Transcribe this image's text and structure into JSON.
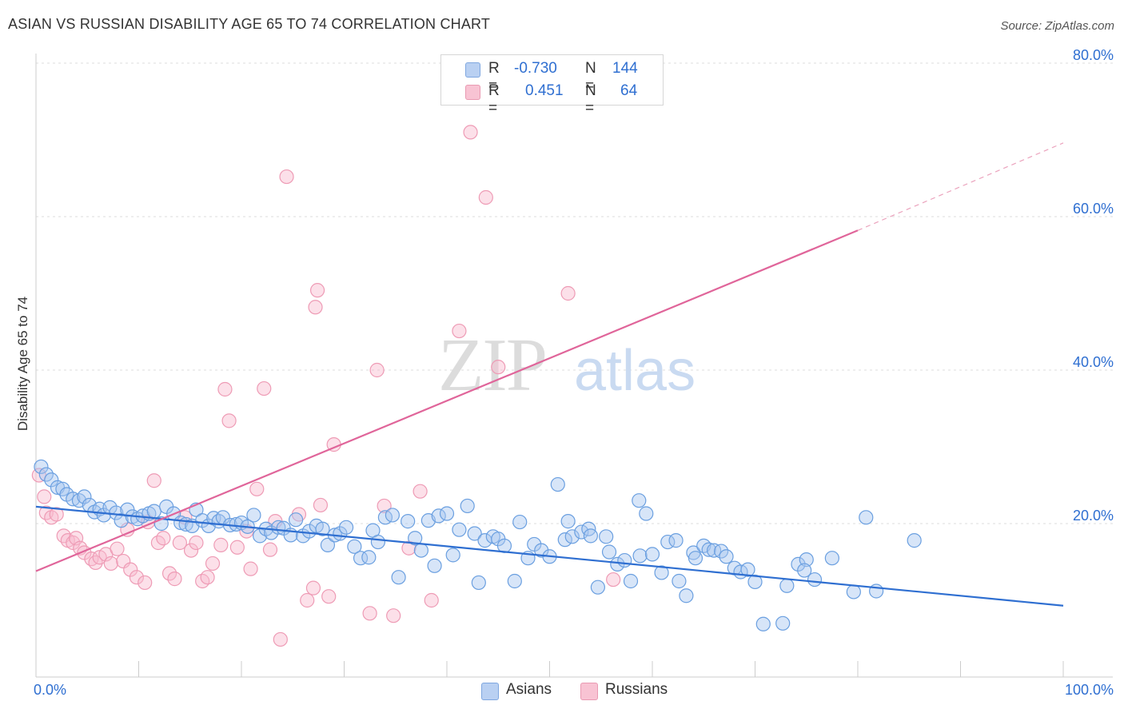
{
  "title": "ASIAN VS RUSSIAN DISABILITY AGE 65 TO 74 CORRELATION CHART",
  "source": "Source: ZipAtlas.com",
  "watermark": {
    "zip": "ZIP",
    "atlas": "atlas"
  },
  "legend": {
    "rows": [
      {
        "r_label": "R =",
        "r_value": "-0.730",
        "n_label": "N =",
        "n_value": "144",
        "color": "#7fa7e0"
      },
      {
        "r_label": "R =",
        "r_value": "0.451",
        "n_label": "N =",
        "n_value": "64",
        "color": "#e99ab2"
      }
    ]
  },
  "chart_data": {
    "type": "scatter",
    "title": "ASIAN VS RUSSIAN DISABILITY AGE 65 TO 74 CORRELATION CHART",
    "xlabel": "",
    "ylabel": "Disability Age 65 to 74",
    "xlim": [
      0,
      100
    ],
    "ylim": [
      0,
      80
    ],
    "x_tick_labels": [
      "0.0%",
      "100.0%"
    ],
    "y_ticks": [
      20,
      40,
      60,
      80
    ],
    "y_tick_labels": [
      "20.0%",
      "40.0%",
      "60.0%",
      "80.0%"
    ],
    "grid": "horizontal dashed",
    "legend_position": "top-center",
    "series": [
      {
        "name": "Asians",
        "color": "#6a9fe0",
        "trend": {
          "x": [
            0,
            100
          ],
          "y": [
            22.2,
            9.3
          ],
          "style": "solid"
        },
        "points": [
          [
            0.5,
            27.4
          ],
          [
            1.0,
            26.4
          ],
          [
            1.5,
            25.7
          ],
          [
            2.1,
            24.7
          ],
          [
            2.6,
            24.5
          ],
          [
            3.0,
            23.8
          ],
          [
            3.6,
            23.2
          ],
          [
            4.2,
            23.0
          ],
          [
            4.7,
            23.5
          ],
          [
            5.2,
            22.4
          ],
          [
            5.7,
            21.5
          ],
          [
            6.2,
            21.9
          ],
          [
            6.6,
            21.1
          ],
          [
            7.2,
            22.1
          ],
          [
            7.8,
            21.4
          ],
          [
            8.3,
            20.4
          ],
          [
            8.9,
            21.8
          ],
          [
            9.4,
            20.9
          ],
          [
            9.9,
            20.6
          ],
          [
            10.4,
            21.0
          ],
          [
            11.0,
            21.3
          ],
          [
            11.5,
            21.6
          ],
          [
            12.2,
            20.0
          ],
          [
            12.7,
            22.2
          ],
          [
            13.4,
            21.3
          ],
          [
            14.1,
            20.1
          ],
          [
            14.6,
            19.9
          ],
          [
            15.2,
            19.7
          ],
          [
            15.6,
            21.8
          ],
          [
            16.2,
            20.4
          ],
          [
            16.8,
            19.7
          ],
          [
            17.3,
            20.7
          ],
          [
            17.8,
            20.3
          ],
          [
            18.2,
            20.8
          ],
          [
            18.9,
            19.8
          ],
          [
            19.5,
            19.9
          ],
          [
            20.0,
            20.1
          ],
          [
            20.6,
            19.6
          ],
          [
            21.2,
            21.1
          ],
          [
            21.8,
            18.4
          ],
          [
            22.4,
            19.3
          ],
          [
            22.9,
            18.8
          ],
          [
            23.6,
            19.5
          ],
          [
            24.1,
            19.4
          ],
          [
            24.8,
            18.5
          ],
          [
            25.3,
            20.5
          ],
          [
            26.0,
            18.4
          ],
          [
            26.6,
            19.0
          ],
          [
            27.3,
            19.7
          ],
          [
            27.9,
            19.3
          ],
          [
            28.4,
            17.2
          ],
          [
            29.1,
            18.5
          ],
          [
            29.6,
            18.7
          ],
          [
            30.2,
            19.5
          ],
          [
            31.0,
            17.0
          ],
          [
            31.6,
            15.5
          ],
          [
            32.4,
            15.6
          ],
          [
            32.8,
            19.1
          ],
          [
            33.3,
            17.6
          ],
          [
            34.0,
            20.8
          ],
          [
            34.7,
            21.1
          ],
          [
            35.3,
            13.0
          ],
          [
            36.2,
            20.3
          ],
          [
            36.9,
            18.1
          ],
          [
            37.5,
            16.5
          ],
          [
            38.2,
            20.4
          ],
          [
            38.8,
            14.5
          ],
          [
            39.2,
            21.0
          ],
          [
            40.0,
            21.3
          ],
          [
            40.6,
            15.9
          ],
          [
            41.2,
            19.2
          ],
          [
            42.0,
            22.3
          ],
          [
            42.7,
            18.7
          ],
          [
            43.1,
            12.3
          ],
          [
            43.7,
            17.8
          ],
          [
            44.5,
            18.3
          ],
          [
            45.0,
            18.0
          ],
          [
            45.6,
            17.1
          ],
          [
            46.6,
            12.5
          ],
          [
            47.1,
            20.2
          ],
          [
            47.9,
            15.5
          ],
          [
            48.5,
            17.3
          ],
          [
            49.2,
            16.5
          ],
          [
            50.0,
            15.7
          ],
          [
            50.8,
            25.1
          ],
          [
            51.5,
            17.9
          ],
          [
            51.8,
            20.3
          ],
          [
            52.2,
            18.3
          ],
          [
            53.1,
            18.9
          ],
          [
            53.8,
            19.3
          ],
          [
            54.0,
            18.4
          ],
          [
            54.7,
            11.7
          ],
          [
            55.5,
            18.3
          ],
          [
            55.8,
            16.3
          ],
          [
            56.6,
            14.7
          ],
          [
            57.3,
            15.2
          ],
          [
            57.9,
            12.5
          ],
          [
            58.7,
            23.0
          ],
          [
            58.8,
            15.8
          ],
          [
            59.4,
            21.3
          ],
          [
            60.0,
            16.0
          ],
          [
            60.9,
            13.6
          ],
          [
            61.5,
            17.6
          ],
          [
            62.3,
            17.8
          ],
          [
            62.6,
            12.5
          ],
          [
            63.3,
            10.6
          ],
          [
            64.0,
            16.2
          ],
          [
            64.2,
            15.5
          ],
          [
            65.0,
            17.1
          ],
          [
            65.5,
            16.6
          ],
          [
            66.0,
            16.5
          ],
          [
            66.7,
            16.4
          ],
          [
            67.2,
            15.7
          ],
          [
            68.0,
            14.2
          ],
          [
            68.6,
            13.7
          ],
          [
            69.3,
            14.0
          ],
          [
            70.0,
            12.4
          ],
          [
            70.8,
            6.9
          ],
          [
            72.7,
            7.0
          ],
          [
            73.1,
            11.9
          ],
          [
            74.2,
            14.7
          ],
          [
            75.0,
            15.3
          ],
          [
            74.8,
            13.9
          ],
          [
            75.8,
            12.7
          ],
          [
            77.5,
            15.5
          ],
          [
            79.6,
            11.1
          ],
          [
            80.8,
            20.8
          ],
          [
            81.8,
            11.2
          ],
          [
            85.5,
            17.8
          ]
        ]
      },
      {
        "name": "Russians",
        "color": "#ef9ab5",
        "trend": {
          "x": [
            0,
            80
          ],
          "y": [
            13.8,
            58.2
          ],
          "x_dashed": [
            80,
            100
          ],
          "y_dashed": [
            58.2,
            69.6
          ],
          "style": "solid+dashed"
        },
        "points": [
          [
            0.3,
            26.3
          ],
          [
            0.8,
            23.5
          ],
          [
            1.0,
            21.4
          ],
          [
            1.5,
            20.8
          ],
          [
            2.0,
            21.2
          ],
          [
            2.7,
            18.4
          ],
          [
            3.1,
            17.8
          ],
          [
            3.6,
            17.5
          ],
          [
            3.9,
            18.1
          ],
          [
            4.3,
            16.8
          ],
          [
            4.7,
            16.2
          ],
          [
            5.4,
            15.4
          ],
          [
            5.8,
            14.9
          ],
          [
            6.2,
            15.6
          ],
          [
            6.8,
            16.0
          ],
          [
            7.3,
            14.8
          ],
          [
            7.9,
            16.7
          ],
          [
            8.5,
            15.1
          ],
          [
            8.9,
            19.2
          ],
          [
            9.2,
            14.0
          ],
          [
            9.8,
            13.0
          ],
          [
            10.6,
            12.3
          ],
          [
            10.9,
            20.2
          ],
          [
            11.5,
            25.6
          ],
          [
            11.9,
            17.5
          ],
          [
            12.4,
            18.1
          ],
          [
            13.0,
            13.5
          ],
          [
            13.5,
            12.8
          ],
          [
            14.0,
            17.5
          ],
          [
            14.5,
            20.8
          ],
          [
            15.1,
            16.5
          ],
          [
            15.6,
            17.5
          ],
          [
            16.2,
            12.5
          ],
          [
            16.7,
            13.0
          ],
          [
            17.2,
            14.8
          ],
          [
            18.0,
            17.2
          ],
          [
            18.4,
            37.5
          ],
          [
            18.8,
            33.4
          ],
          [
            19.6,
            16.9
          ],
          [
            20.5,
            19.0
          ],
          [
            20.9,
            14.1
          ],
          [
            21.5,
            24.5
          ],
          [
            22.2,
            37.6
          ],
          [
            22.8,
            16.6
          ],
          [
            23.3,
            20.3
          ],
          [
            23.8,
            4.9
          ],
          [
            24.4,
            65.2
          ],
          [
            25.6,
            21.2
          ],
          [
            26.4,
            10.0
          ],
          [
            27.0,
            11.6
          ],
          [
            27.2,
            48.2
          ],
          [
            27.4,
            50.4
          ],
          [
            27.7,
            22.4
          ],
          [
            28.5,
            10.5
          ],
          [
            29.0,
            30.3
          ],
          [
            32.5,
            8.3
          ],
          [
            33.2,
            40.0
          ],
          [
            33.9,
            22.3
          ],
          [
            34.8,
            8.0
          ],
          [
            36.3,
            16.8
          ],
          [
            37.4,
            24.2
          ],
          [
            38.5,
            10.0
          ],
          [
            41.2,
            45.1
          ],
          [
            42.3,
            71.0
          ],
          [
            43.8,
            62.5
          ],
          [
            45.0,
            40.4
          ],
          [
            51.8,
            50.0
          ],
          [
            56.2,
            12.7
          ]
        ]
      }
    ]
  },
  "bottom_legend": [
    {
      "label": "Asians",
      "color": "#b9d0f2"
    },
    {
      "label": "Russians",
      "color": "#f8c3d3"
    }
  ]
}
